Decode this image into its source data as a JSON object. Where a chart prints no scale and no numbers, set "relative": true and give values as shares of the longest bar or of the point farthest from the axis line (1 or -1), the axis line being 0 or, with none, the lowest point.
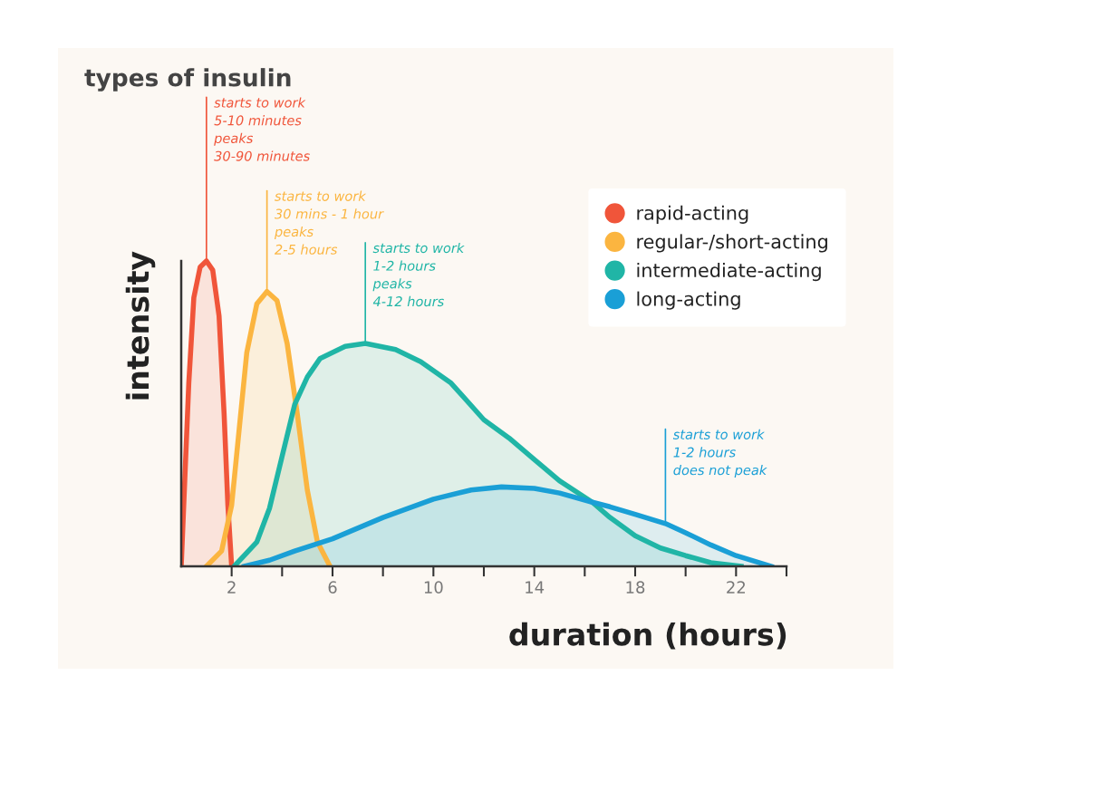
{
  "chart_data": {
    "type": "area",
    "title": "types of insulin",
    "xlabel": "duration (hours)",
    "ylabel": "intensity",
    "relative": true,
    "xlim": [
      0,
      24
    ],
    "xticks": [
      2,
      {
        "value": 4,
        "label": null
      },
      6,
      {
        "value": 8,
        "label": null
      },
      10,
      {
        "value": 12,
        "label": null
      },
      14,
      {
        "value": 16,
        "label": null
      },
      18,
      {
        "value": 20,
        "label": null
      },
      22,
      {
        "value": 24,
        "label": null
      }
    ],
    "grid": false,
    "legend": "top right",
    "marker": "none",
    "line_style": "solid",
    "series": [
      {
        "name": "rapid-acting",
        "color": "#f0553a",
        "x": [
          0,
          0.15,
          0.3,
          0.5,
          0.75,
          1.0,
          1.25,
          1.5,
          1.7,
          1.85,
          2.0
        ],
        "values": [
          0,
          0.3,
          0.6,
          0.88,
          0.98,
          1.0,
          0.97,
          0.82,
          0.5,
          0.2,
          0
        ]
      },
      {
        "name": "regular-/short-acting",
        "color": "#fbb540",
        "x": [
          1.0,
          1.6,
          2.0,
          2.3,
          2.6,
          3.0,
          3.4,
          3.8,
          4.2,
          4.6,
          5.0,
          5.4,
          5.9
        ],
        "values": [
          0,
          0.05,
          0.2,
          0.45,
          0.7,
          0.86,
          0.9,
          0.87,
          0.73,
          0.5,
          0.25,
          0.08,
          0
        ]
      },
      {
        "name": "intermediate-acting",
        "color": "#20b5a6",
        "x": [
          2.1,
          3.0,
          3.5,
          4.0,
          4.5,
          5.0,
          5.5,
          6.5,
          7.3,
          8.5,
          9.5,
          10.7,
          12,
          13,
          14,
          15,
          16.3,
          17,
          18,
          19,
          20,
          21,
          22.2
        ],
        "values": [
          0,
          0.08,
          0.19,
          0.36,
          0.53,
          0.62,
          0.68,
          0.72,
          0.73,
          0.71,
          0.67,
          0.6,
          0.48,
          0.42,
          0.35,
          0.28,
          0.21,
          0.16,
          0.1,
          0.06,
          0.035,
          0.012,
          0
        ]
      },
      {
        "name": "long-acting",
        "color": "#1a9fd6",
        "x": [
          2.5,
          3.5,
          4.5,
          6,
          8,
          10,
          11.5,
          12.7,
          14,
          15,
          16.3,
          17,
          18,
          19.2,
          20,
          21,
          22,
          23.4
        ],
        "values": [
          0,
          0.02,
          0.05,
          0.09,
          0.16,
          0.22,
          0.25,
          0.26,
          0.255,
          0.24,
          0.21,
          0.195,
          0.17,
          0.14,
          0.11,
          0.07,
          0.035,
          0
        ]
      }
    ],
    "annotations": [
      {
        "text": "starts to work\n5-10 minutes\npeaks\n30-90 minutes",
        "x": 1.0,
        "y": 1.0
      },
      {
        "text": "starts to work\n30 mins - 1 hour\npeaks\n2-5 hours",
        "x": 3.4,
        "y": 0.9
      },
      {
        "text": "starts to work\n1-2 hours\npeaks\n4-12 hours",
        "x": 7.3,
        "y": 0.73
      },
      {
        "text": "starts to work\n1-2 hours\ndoes not peak",
        "x": 19.2,
        "y": 0.14
      }
    ]
  }
}
